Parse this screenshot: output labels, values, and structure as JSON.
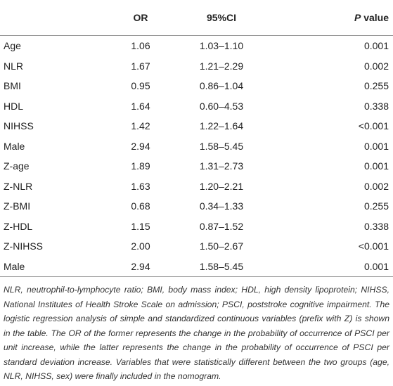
{
  "table": {
    "header": {
      "or": "OR",
      "ci": "95%CI",
      "p_symbol": "P",
      "p_text": "value"
    },
    "rows": [
      [
        "Age",
        "1.06",
        "1.03–1.10",
        "0.001"
      ],
      [
        "NLR",
        "1.67",
        "1.21–2.29",
        "0.002"
      ],
      [
        "BMI",
        "0.95",
        "0.86–1.04",
        "0.255"
      ],
      [
        "HDL",
        "1.64",
        "0.60–4.53",
        "0.338"
      ],
      [
        "NIHSS",
        "1.42",
        "1.22–1.64",
        "<0.001"
      ],
      [
        "Male",
        "2.94",
        "1.58–5.45",
        "0.001"
      ],
      [
        "Z-age",
        "1.89",
        "1.31–2.73",
        "0.001"
      ],
      [
        "Z-NLR",
        "1.63",
        "1.20–2.21",
        "0.002"
      ],
      [
        "Z-BMI",
        "0.68",
        "0.34–1.33",
        "0.255"
      ],
      [
        "Z-HDL",
        "1.15",
        "0.87–1.52",
        "0.338"
      ],
      [
        "Z-NIHSS",
        "2.00",
        "1.50–2.67",
        "<0.001"
      ],
      [
        "Male",
        "2.94",
        "1.58–5.45",
        "0.001"
      ]
    ]
  },
  "footnote": "NLR, neutrophil-to-lymphocyte ratio; BMI, body mass index; HDL, high density lipoprotein; NIHSS, National Institutes of Health Stroke Scale on admission; PSCI, poststroke cognitive impairment. The logistic regression analysis of simple and standardized continuous variables (prefix with Z) is shown in the table. The OR of the former represents the change in the probability of occurrence of PSCI per unit increase, while the latter represents the change in the probability of occurrence of PSCI per standard deviation increase. Variables that were statistically different between the two groups (age, NLR, NIHSS, sex) were finally included in the nomogram."
}
